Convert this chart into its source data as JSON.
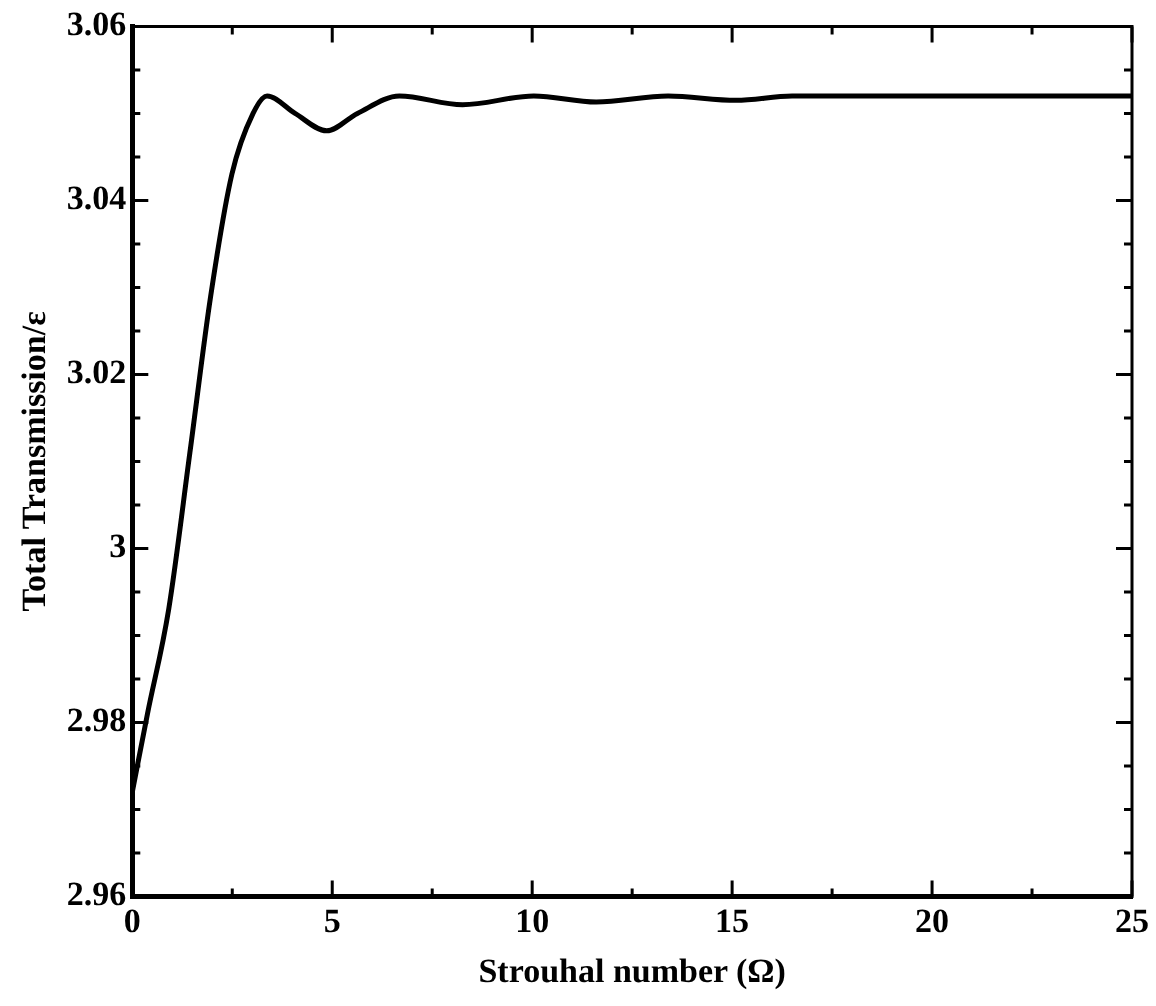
{
  "chart_data": {
    "type": "line",
    "xlabel": "Strouhal number (Ω)",
    "ylabel": "Total Transmission/ε",
    "series": [
      {
        "color": "#000000",
        "x": [
          0,
          0.38,
          0.91,
          1.44,
          1.96,
          2.49,
          3.02,
          3.37,
          4.07,
          4.86,
          5.63,
          6.68,
          8.26,
          10.04,
          11.6,
          13.4,
          15.1,
          16.5,
          25
        ],
        "values": [
          2.972,
          2.981,
          2.993,
          3.011,
          3.029,
          3.043,
          3.05,
          3.052,
          3.05,
          3.048,
          3.05,
          3.052,
          3.051,
          3.052,
          3.0513,
          3.052,
          3.0515,
          3.052,
          3.052
        ]
      }
    ],
    "xlim": [
      0,
      25
    ],
    "ylim": [
      2.96,
      3.06
    ],
    "xticks": [
      0,
      {
        "value": 2.5,
        "label": null
      },
      5,
      {
        "value": 7.5,
        "label": null
      },
      10,
      {
        "value": 12.5,
        "label": null
      },
      15,
      {
        "value": 17.5,
        "label": null
      },
      20,
      {
        "value": 22.5,
        "label": null
      },
      25
    ],
    "yticks": [
      2.96,
      {
        "value": 2.965,
        "label": null
      },
      2.98,
      {
        "value": 2.985,
        "label": null
      },
      3,
      {
        "value": 3.005,
        "label": null
      },
      3.02,
      {
        "value": 3.025,
        "label": null
      },
      3.04,
      {
        "value": 3.045,
        "label": null
      },
      3.06,
      {
        "value": 2.975,
        "label": null
      },
      {
        "value": 2.995,
        "label": null
      },
      {
        "value": 3.015,
        "label": null
      },
      {
        "value": 3.035,
        "label": null
      },
      {
        "value": 3.055,
        "label": null
      },
      {
        "value": 2.97,
        "label": null
      },
      {
        "value": 2.99,
        "label": null
      },
      {
        "value": 3.01,
        "label": null
      },
      {
        "value": 3.03,
        "label": null
      },
      {
        "value": 3.05,
        "label": null
      }
    ],
    "grid": false,
    "legend": false,
    "marker": "none",
    "line_style": "solid"
  }
}
